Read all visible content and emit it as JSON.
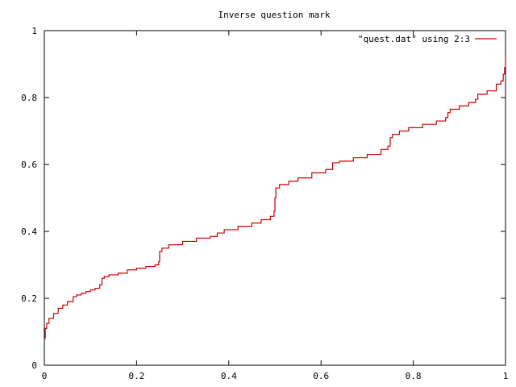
{
  "chart_data": {
    "type": "line",
    "title": "Inverse question mark",
    "xlabel": "",
    "ylabel": "",
    "xlim": [
      0,
      1
    ],
    "ylim": [
      0,
      1
    ],
    "x_ticks": [
      "0",
      "0.2",
      "0.4",
      "0.6",
      "0.8",
      "1"
    ],
    "y_ticks": [
      "0",
      "0.2",
      "0.4",
      "0.6",
      "0.8",
      "1"
    ],
    "grid": false,
    "legend_position": "top-right",
    "series": [
      {
        "name": "\"quest.dat\" using 2:3",
        "color": "#cc0000",
        "x": [
          0,
          0.002,
          0.005,
          0.01,
          0.02,
          0.03,
          0.04,
          0.05,
          0.0625,
          0.07,
          0.08,
          0.09,
          0.1,
          0.11,
          0.12,
          0.125,
          0.13,
          0.14,
          0.16,
          0.18,
          0.2,
          0.22,
          0.24,
          0.248,
          0.25,
          0.255,
          0.27,
          0.3,
          0.33,
          0.36,
          0.375,
          0.39,
          0.42,
          0.45,
          0.47,
          0.49,
          0.498,
          0.5,
          0.502,
          0.51,
          0.53,
          0.55,
          0.58,
          0.61,
          0.625,
          0.64,
          0.67,
          0.7,
          0.73,
          0.745,
          0.75,
          0.755,
          0.77,
          0.79,
          0.82,
          0.85,
          0.87,
          0.875,
          0.88,
          0.9,
          0.92,
          0.935,
          0.94,
          0.96,
          0.98,
          0.99,
          0.995,
          0.998,
          1.0
        ],
        "y": [
          0.08,
          0.11,
          0.125,
          0.14,
          0.155,
          0.17,
          0.18,
          0.19,
          0.205,
          0.21,
          0.215,
          0.22,
          0.225,
          0.23,
          0.24,
          0.26,
          0.265,
          0.27,
          0.275,
          0.285,
          0.29,
          0.295,
          0.3,
          0.31,
          0.34,
          0.35,
          0.36,
          0.37,
          0.38,
          0.385,
          0.395,
          0.405,
          0.415,
          0.425,
          0.435,
          0.445,
          0.46,
          0.5,
          0.53,
          0.54,
          0.55,
          0.56,
          0.575,
          0.585,
          0.605,
          0.61,
          0.62,
          0.63,
          0.645,
          0.655,
          0.68,
          0.69,
          0.7,
          0.71,
          0.72,
          0.73,
          0.74,
          0.755,
          0.765,
          0.775,
          0.785,
          0.795,
          0.81,
          0.82,
          0.84,
          0.85,
          0.87,
          0.89,
          0.92
        ]
      }
    ]
  }
}
